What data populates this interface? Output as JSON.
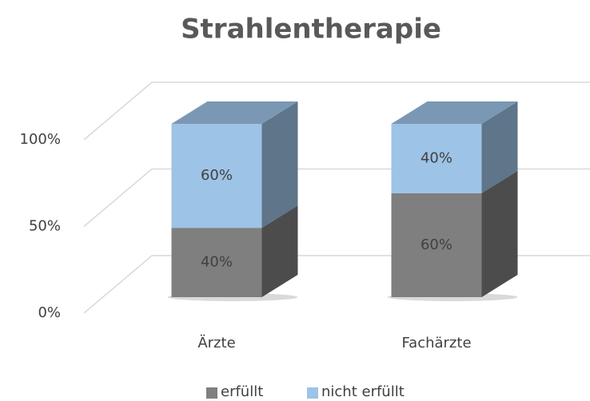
{
  "chart_data": {
    "type": "bar3d_stacked",
    "title": "Strahlentherapie",
    "categories": [
      "Ärzte",
      "Fachärzte"
    ],
    "series": [
      {
        "name": "erfüllt",
        "color": "#7f7f7f",
        "values": [
          40,
          60
        ],
        "value_labels": [
          "40%",
          "60%"
        ]
      },
      {
        "name": "nicht erfüllt",
        "color": "#9dc3e6",
        "values": [
          60,
          40
        ],
        "value_labels": [
          "60%",
          "40%"
        ]
      }
    ],
    "ylim": [
      0,
      100
    ],
    "yticks": [
      {
        "value": 0,
        "label": "0%"
      },
      {
        "value": 50,
        "label": "50%"
      },
      {
        "value": 100,
        "label": "100%"
      }
    ],
    "grid": true
  }
}
